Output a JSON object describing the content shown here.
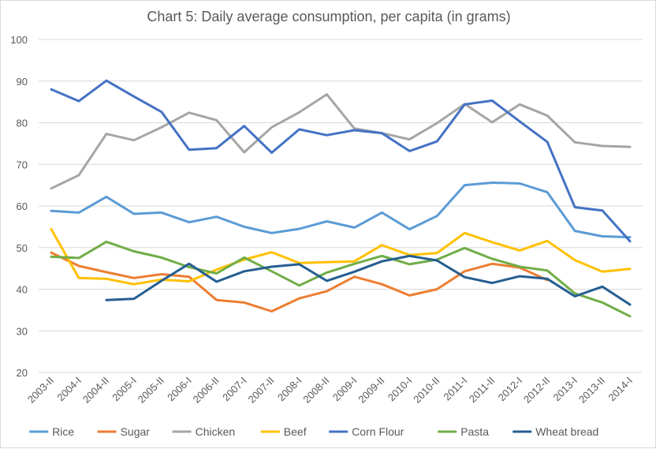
{
  "chart_data": {
    "type": "line",
    "title": "Chart 5: Daily average consumption, per capita (in grams)",
    "xlabel": "",
    "ylabel": "",
    "ylim": [
      20,
      100
    ],
    "yticks": [
      20,
      30,
      40,
      50,
      60,
      70,
      80,
      90,
      100
    ],
    "grid": true,
    "legend_position": "bottom",
    "categories": [
      "2003-II",
      "2004-I",
      "2004-II",
      "2005-I",
      "2005-II",
      "2006-I",
      "2006-II",
      "2007-I",
      "2007-II",
      "2008-I",
      "2008-II",
      "2009-I",
      "2009-II",
      "2010-I",
      "2010-II",
      "2011-I",
      "2011-II",
      "2012-I",
      "2012-II",
      "2013-I",
      "2013-II",
      "2014-I"
    ],
    "series": [
      {
        "name": "Rice",
        "color": "#5b9bd5",
        "values": [
          58.8,
          58.4,
          62.2,
          58.1,
          58.4,
          56.1,
          57.4,
          55.0,
          53.5,
          54.5,
          56.3,
          54.8,
          58.4,
          54.4,
          57.6,
          65.0,
          65.6,
          65.4,
          63.3,
          54.0,
          52.7,
          52.5
        ]
      },
      {
        "name": "Sugar",
        "color": "#ed7d31",
        "values": [
          48.8,
          45.6,
          44.1,
          42.7,
          43.6,
          43.0,
          37.4,
          36.8,
          34.7,
          37.8,
          39.5,
          43.0,
          41.2,
          38.5,
          40.0,
          44.3,
          46.1,
          45.2,
          42.2,
          null,
          null,
          null
        ]
      },
      {
        "name": "Chicken",
        "color": "#a5a5a5",
        "values": [
          64.2,
          67.4,
          77.3,
          75.8,
          78.9,
          82.4,
          80.6,
          72.9,
          78.9,
          82.5,
          86.8,
          78.6,
          77.5,
          76.0,
          79.9,
          84.5,
          80.1,
          84.4,
          81.7,
          75.3,
          74.4,
          74.2
        ]
      },
      {
        "name": "Beef",
        "color": "#ffc000",
        "values": [
          54.4,
          42.7,
          42.5,
          41.2,
          42.3,
          41.9,
          44.7,
          47.1,
          48.9,
          46.3,
          46.5,
          46.7,
          50.6,
          48.2,
          48.7,
          53.5,
          51.3,
          49.3,
          51.6,
          47.0,
          44.2,
          44.9
        ]
      },
      {
        "name": "Corn Flour",
        "color": "#4472c4",
        "values": [
          88.0,
          85.2,
          90.1,
          86.3,
          82.6,
          73.5,
          73.9,
          79.2,
          72.8,
          78.4,
          77.0,
          78.2,
          77.5,
          73.2,
          75.5,
          84.4,
          85.3,
          80.3,
          75.4,
          59.7,
          58.9,
          51.5
        ]
      },
      {
        "name": "Pasta",
        "color": "#70ad47",
        "values": [
          47.8,
          47.5,
          51.4,
          49.1,
          47.6,
          45.3,
          43.8,
          47.6,
          44.3,
          40.9,
          44.0,
          46.1,
          48.0,
          46.0,
          47.1,
          49.9,
          47.3,
          45.4,
          44.5,
          39.0,
          36.8,
          33.5
        ]
      },
      {
        "name": "Wheat bread",
        "color": "#255e91",
        "values": [
          null,
          null,
          37.4,
          37.7,
          42.0,
          46.1,
          41.8,
          44.3,
          45.4,
          46.0,
          42.0,
          44.2,
          46.7,
          48.0,
          46.9,
          42.9,
          41.5,
          43.1,
          42.5,
          38.3,
          40.6,
          36.3
        ]
      }
    ]
  }
}
